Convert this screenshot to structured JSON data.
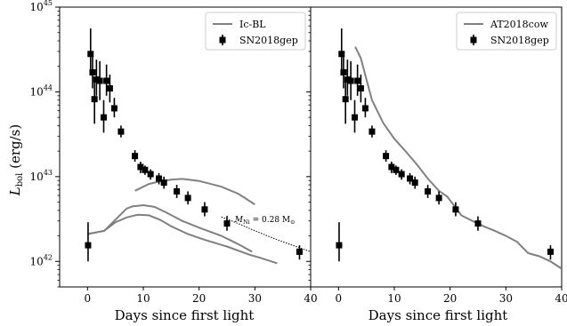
{
  "ylabel_html": "L",
  "ylabel_sub": "bol",
  "ylabel_unit": " (erg/s)",
  "chart_data": [
    {
      "type": "line",
      "panel": "left",
      "xlabel": "Days since first light",
      "ylabel": "L_bol (erg/s)",
      "xlim": [
        -5,
        40
      ],
      "ylim": [
        5e+41,
        1e+45
      ],
      "yscale": "log",
      "x_ticks": [
        "0",
        "10",
        "20",
        "30",
        "40"
      ],
      "y_ticks": [
        {
          "base": "10",
          "exp": "42",
          "value": 1e+42
        },
        {
          "base": "10",
          "exp": "43",
          "value": 1e+43
        },
        {
          "base": "10",
          "exp": "44",
          "value": 1e+44
        },
        {
          "base": "10",
          "exp": "45",
          "value": 1e+45
        }
      ],
      "legend": {
        "position": "top-right",
        "entries": [
          "Ic-BL",
          "SN2018gep"
        ]
      },
      "annotation": {
        "prefix": "M",
        "sub": "Ni",
        "mid": " = 0.28 M",
        "sun": "⊙"
      },
      "series": [
        {
          "name": "Ic-BL",
          "kind": "model",
          "points": [
            [
              8.5,
              6.8e+42
            ],
            [
              11,
              8.2e+42
            ],
            [
              13,
              8.8e+42
            ],
            [
              15,
              9.2e+42
            ],
            [
              17,
              9.4e+42
            ],
            [
              20,
              8.9e+42
            ],
            [
              24,
              7.6e+42
            ],
            [
              27,
              6.3e+42
            ],
            [
              30,
              4.7e+42
            ]
          ]
        },
        {
          "kind": "model",
          "points": [
            [
              0,
              2.1e+42
            ],
            [
              3,
              2.3e+42
            ],
            [
              5,
              3.1e+42
            ],
            [
              7,
              4.2e+42
            ],
            [
              8,
              4.45e+42
            ],
            [
              10,
              4.6e+42
            ],
            [
              12,
              4.4e+42
            ],
            [
              14,
              3.8e+42
            ],
            [
              17,
              3e+42
            ],
            [
              20,
              2.5e+42
            ],
            [
              24,
              2e+42
            ],
            [
              27,
              1.6e+42
            ],
            [
              29.5,
              1.3e+42
            ]
          ]
        },
        {
          "kind": "model",
          "points": [
            [
              0,
              2.1e+42
            ],
            [
              3,
              2.3e+42
            ],
            [
              5,
              2.9e+42
            ],
            [
              7,
              3.3e+42
            ],
            [
              9,
              3.55e+42
            ],
            [
              11,
              3.5e+42
            ],
            [
              13,
              3.1e+42
            ],
            [
              15,
              2.6e+42
            ],
            [
              18,
              2.1e+42
            ],
            [
              21,
              1.8e+42
            ],
            [
              25,
              1.5e+42
            ],
            [
              29,
              1.2e+42
            ],
            [
              31,
              1.1e+42
            ],
            [
              34,
              9.5e+41
            ]
          ]
        },
        {
          "kind": "nickel",
          "points": [
            [
              24,
              3.35e+42
            ],
            [
              27,
              2.8e+42
            ],
            [
              30,
              2.3e+42
            ],
            [
              34,
              1.8e+42
            ],
            [
              38,
              1.45e+42
            ],
            [
              40,
              1.3e+42
            ]
          ]
        },
        {
          "name": "SN2018gep",
          "kind": "data",
          "points": [
            {
              "x": 0.1,
              "y": 1.55e+42,
              "lo": 1e+42,
              "hi": 2.9e+42
            },
            {
              "x": 0.55,
              "y": 2.8e+44,
              "lo": 1.6e+44,
              "hi": 5.6e+44
            },
            {
              "x": 0.9,
              "y": 1.7e+44,
              "lo": 1.1e+44,
              "hi": 3e+44
            },
            {
              "x": 1.25,
              "y": 8.2e+43,
              "lo": 4.2e+43,
              "hi": 1.5e+44
            },
            {
              "x": 1.6,
              "y": 1.4e+44,
              "lo": 9e+43,
              "hi": 2.4e+44
            },
            {
              "x": 2.2,
              "y": 1.35e+44,
              "lo": 8e+43,
              "hi": 2.3e+44
            },
            {
              "x": 2.9,
              "y": 5e+43,
              "lo": 3.3e+43,
              "hi": 8e+43
            },
            {
              "x": 3.4,
              "y": 1.35e+44,
              "lo": 9e+43,
              "hi": 2.1e+44
            },
            {
              "x": 4.0,
              "y": 1.1e+44,
              "lo": 7.5e+43,
              "hi": 1.6e+44
            },
            {
              "x": 4.8,
              "y": 6.4e+43,
              "lo": 5e+43,
              "hi": 8.5e+43
            },
            {
              "x": 6.0,
              "y": 3.4e+43,
              "lo": 2.9e+43,
              "hi": 4e+43
            },
            {
              "x": 8.5,
              "y": 1.75e+43,
              "lo": 1.5e+43,
              "hi": 2.05e+43
            },
            {
              "x": 9.5,
              "y": 1.3e+43,
              "lo": 1.1e+43,
              "hi": 1.5e+43
            },
            {
              "x": 10.3,
              "y": 1.2e+43,
              "lo": 1.05e+43,
              "hi": 1.35e+43
            },
            {
              "x": 11.3,
              "y": 1.07e+43,
              "lo": 9.2e+42,
              "hi": 1.22e+43
            },
            {
              "x": 12.8,
              "y": 9.5e+42,
              "lo": 8.1e+42,
              "hi": 1.1e+43
            },
            {
              "x": 13.7,
              "y": 8.5e+42,
              "lo": 7.2e+42,
              "hi": 1e+43
            },
            {
              "x": 16.0,
              "y": 6.7e+42,
              "lo": 5.6e+42,
              "hi": 8e+42
            },
            {
              "x": 18.0,
              "y": 5.6e+42,
              "lo": 4.7e+42,
              "hi": 6.7e+42
            },
            {
              "x": 21.0,
              "y": 4.1e+42,
              "lo": 3.4e+42,
              "hi": 5e+42
            },
            {
              "x": 25.0,
              "y": 2.8e+42,
              "lo": 2.3e+42,
              "hi": 3.4e+42
            },
            {
              "x": 38.0,
              "y": 1.3e+42,
              "lo": 1.05e+42,
              "hi": 1.55e+42
            }
          ]
        }
      ]
    },
    {
      "type": "line",
      "panel": "right",
      "xlabel": "Days since first light",
      "xlim": [
        -5,
        40
      ],
      "ylim": [
        5e+41,
        1e+45
      ],
      "yscale": "log",
      "x_ticks": [
        "0",
        "10",
        "20",
        "30",
        "40"
      ],
      "legend": {
        "position": "top-right",
        "entries": [
          "AT2018cow",
          "SN2018gep"
        ]
      },
      "series": [
        {
          "name": "AT2018cow",
          "kind": "model",
          "points": [
            [
              3,
              3.4e+44
            ],
            [
              4,
              2.5e+44
            ],
            [
              5,
              1.4e+44
            ],
            [
              6,
              8e+43
            ],
            [
              8,
              4.3e+43
            ],
            [
              10,
              2.8e+43
            ],
            [
              12,
              2e+43
            ],
            [
              14,
              1.4e+43
            ],
            [
              16,
              9.5e+42
            ],
            [
              18,
              6.8e+42
            ],
            [
              19.5,
              5.8e+42
            ],
            [
              21,
              4.3e+42
            ],
            [
              22,
              3.5e+42
            ],
            [
              24,
              3e+42
            ],
            [
              26,
              2.6e+42
            ],
            [
              28,
              2.3e+42
            ],
            [
              30,
              2e+42
            ],
            [
              32,
              1.7e+42
            ],
            [
              34,
              1.25e+42
            ],
            [
              36,
              1.15e+42
            ],
            [
              38,
              1e+42
            ],
            [
              40,
              8.2e+41
            ]
          ]
        },
        {
          "name": "SN2018gep",
          "kind": "data",
          "points": [
            {
              "x": 0.1,
              "y": 1.55e+42,
              "lo": 1e+42,
              "hi": 2.9e+42
            },
            {
              "x": 0.55,
              "y": 2.8e+44,
              "lo": 1.6e+44,
              "hi": 5.6e+44
            },
            {
              "x": 0.9,
              "y": 1.7e+44,
              "lo": 1.1e+44,
              "hi": 3e+44
            },
            {
              "x": 1.25,
              "y": 8.2e+43,
              "lo": 4.2e+43,
              "hi": 1.5e+44
            },
            {
              "x": 1.6,
              "y": 1.4e+44,
              "lo": 9e+43,
              "hi": 2.4e+44
            },
            {
              "x": 2.2,
              "y": 1.35e+44,
              "lo": 8e+43,
              "hi": 2.3e+44
            },
            {
              "x": 2.9,
              "y": 5e+43,
              "lo": 3.3e+43,
              "hi": 8e+43
            },
            {
              "x": 3.4,
              "y": 1.35e+44,
              "lo": 9e+43,
              "hi": 2.1e+44
            },
            {
              "x": 4.0,
              "y": 1.1e+44,
              "lo": 7.5e+43,
              "hi": 1.6e+44
            },
            {
              "x": 4.8,
              "y": 6.4e+43,
              "lo": 5e+43,
              "hi": 8.5e+43
            },
            {
              "x": 6.0,
              "y": 3.4e+43,
              "lo": 2.9e+43,
              "hi": 4e+43
            },
            {
              "x": 8.5,
              "y": 1.75e+43,
              "lo": 1.5e+43,
              "hi": 2.05e+43
            },
            {
              "x": 9.5,
              "y": 1.3e+43,
              "lo": 1.1e+43,
              "hi": 1.5e+43
            },
            {
              "x": 10.3,
              "y": 1.2e+43,
              "lo": 1.05e+43,
              "hi": 1.35e+43
            },
            {
              "x": 11.3,
              "y": 1.07e+43,
              "lo": 9.2e+42,
              "hi": 1.22e+43
            },
            {
              "x": 12.8,
              "y": 9.5e+42,
              "lo": 8.1e+42,
              "hi": 1.1e+43
            },
            {
              "x": 13.7,
              "y": 8.5e+42,
              "lo": 7.2e+42,
              "hi": 1e+43
            },
            {
              "x": 16.0,
              "y": 6.7e+42,
              "lo": 5.6e+42,
              "hi": 8e+42
            },
            {
              "x": 18.0,
              "y": 5.6e+42,
              "lo": 4.7e+42,
              "hi": 6.7e+42
            },
            {
              "x": 21.0,
              "y": 4.1e+42,
              "lo": 3.4e+42,
              "hi": 5e+42
            },
            {
              "x": 25.0,
              "y": 2.8e+42,
              "lo": 2.3e+42,
              "hi": 3.4e+42
            },
            {
              "x": 38.0,
              "y": 1.3e+42,
              "lo": 1.05e+42,
              "hi": 1.55e+42
            }
          ]
        }
      ]
    }
  ],
  "colors": {
    "model": "#808080",
    "data": "#000000",
    "axes": "#000000"
  }
}
